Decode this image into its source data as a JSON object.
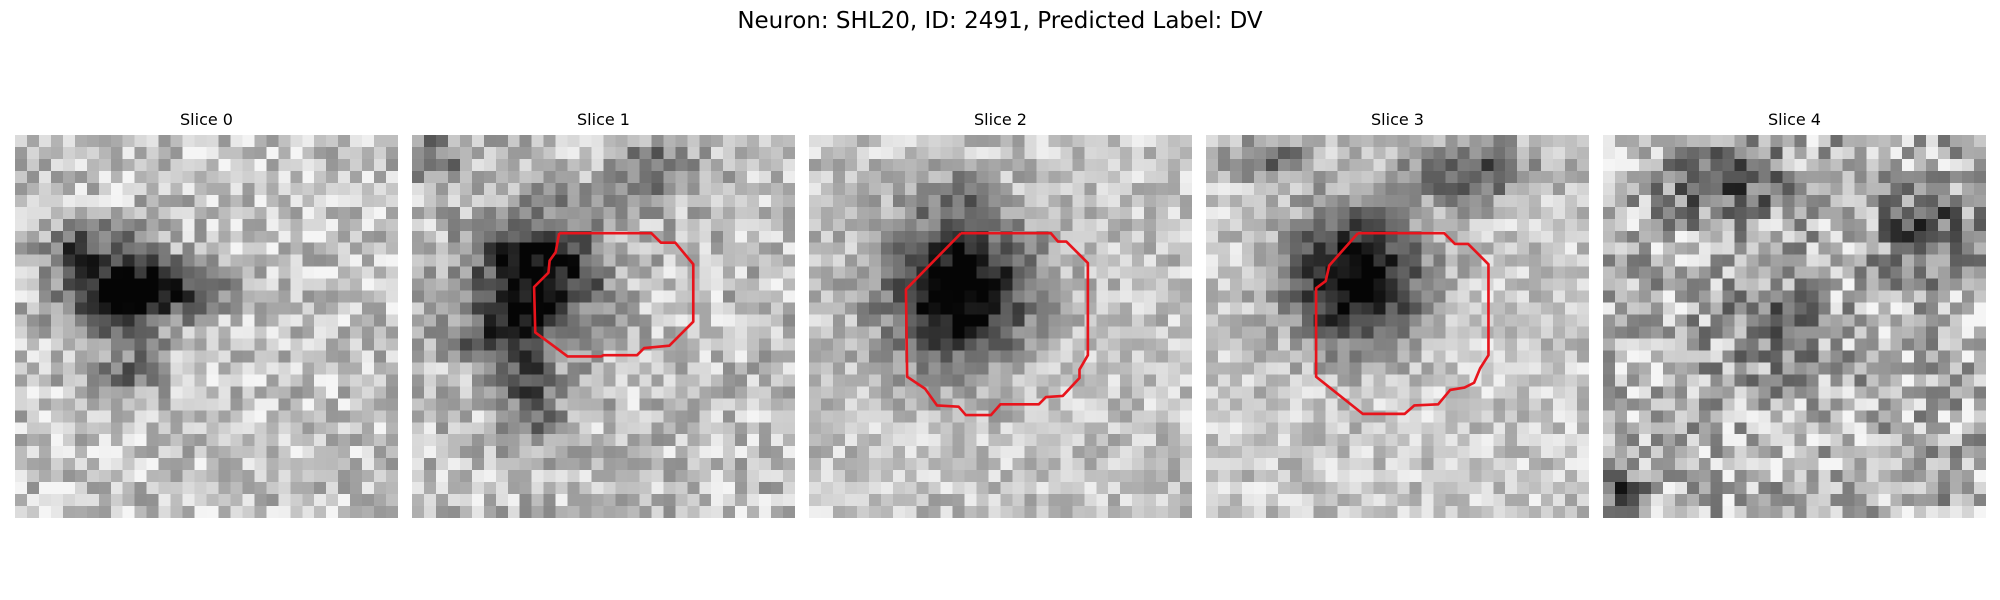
{
  "figure": {
    "title": "Neuron: SHL20, ID: 2491, Predicted Label: DV"
  },
  "slices": [
    {
      "label": "Slice 0",
      "has_contour": false
    },
    {
      "label": "Slice 1",
      "has_contour": true
    },
    {
      "label": "Slice 2",
      "has_contour": true
    },
    {
      "label": "Slice 3",
      "has_contour": true
    },
    {
      "label": "Slice 4",
      "has_contour": false
    }
  ],
  "colors": {
    "contour": "#e8141c",
    "background": "#ffffff"
  }
}
